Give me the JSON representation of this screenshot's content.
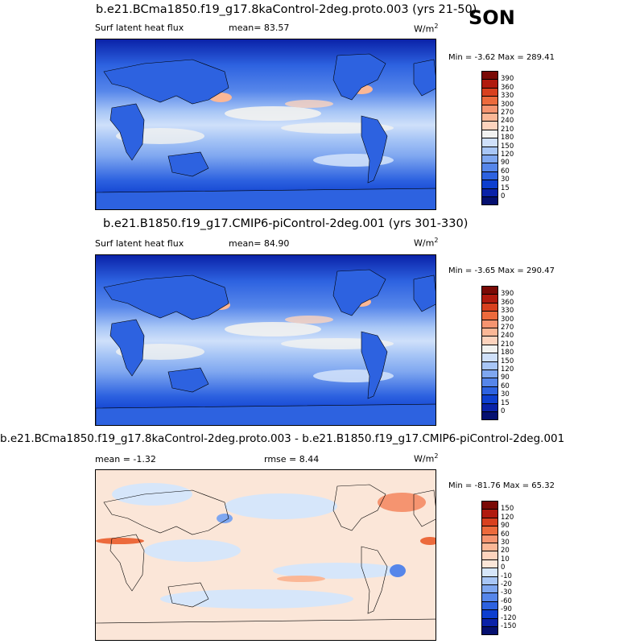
{
  "season": "SON",
  "panels": [
    {
      "title": "b.e21.BCma1850.f19_g17.8kaControl-2deg.proto.003 (yrs 21-50)",
      "left_label": "Surf latent heat flux",
      "stat_label": "mean=",
      "stat_value": "83.57",
      "units_base": "W/m",
      "units_sup": "2",
      "minmax": "Min =  -3.62 Max = 289.41",
      "colorbar": {
        "levels": [
          "390",
          "360",
          "330",
          "300",
          "270",
          "240",
          "210",
          "180",
          "150",
          "120",
          "90",
          "60",
          "30",
          "15",
          "0"
        ],
        "colors": [
          "#7a0a06",
          "#b01a0e",
          "#d8401e",
          "#ec6a3c",
          "#f59470",
          "#fbb796",
          "#fdd3bd",
          "#f2f2f0",
          "#cfe0fa",
          "#a8c6f6",
          "#7fa7f0",
          "#5686ea",
          "#2d62e0",
          "#0e3fcf",
          "#0a22a8",
          "#051070"
        ]
      }
    },
    {
      "title": "b.e21.B1850.f19_g17.CMIP6-piControl-2deg.001 (yrs 301-330)",
      "left_label": "Surf latent heat flux",
      "stat_label": "mean=",
      "stat_value": "84.90",
      "units_base": "W/m",
      "units_sup": "2",
      "minmax": "Min =  -3.65 Max = 290.47",
      "colorbar": {
        "levels": [
          "390",
          "360",
          "330",
          "300",
          "270",
          "240",
          "210",
          "180",
          "150",
          "120",
          "90",
          "60",
          "30",
          "15",
          "0"
        ],
        "colors": [
          "#7a0a06",
          "#b01a0e",
          "#d8401e",
          "#ec6a3c",
          "#f59470",
          "#fbb796",
          "#fdd3bd",
          "#f2f2f0",
          "#cfe0fa",
          "#a8c6f6",
          "#7fa7f0",
          "#5686ea",
          "#2d62e0",
          "#0e3fcf",
          "#0a22a8",
          "#051070"
        ]
      }
    },
    {
      "title": "b.e21.BCma1850.f19_g17.8kaControl-2deg.proto.003 - b.e21.B1850.f19_g17.CMIP6-piControl-2deg.001",
      "left_label": "mean =  -1.32",
      "stat_label": "rmse =",
      "stat_value": "8.44",
      "units_base": "W/m",
      "units_sup": "2",
      "minmax": "Min = -81.76 Max =  65.32",
      "colorbar": {
        "levels": [
          "150",
          "120",
          "90",
          "60",
          "30",
          "20",
          "10",
          "0",
          "-10",
          "-20",
          "-30",
          "-60",
          "-90",
          "-120",
          "-150"
        ],
        "colors": [
          "#7a0a06",
          "#b01a0e",
          "#d8401e",
          "#ec6a3c",
          "#f59470",
          "#fbb796",
          "#fdd3bd",
          "#fbe6d8",
          "#d6e6fa",
          "#a8c6f6",
          "#7fa7f0",
          "#5686ea",
          "#2d62e0",
          "#0e3fcf",
          "#0a22a8",
          "#051070"
        ]
      }
    }
  ],
  "chart_data": [
    {
      "type": "heatmap",
      "title": "b.e21.BCma1850.f19_g17.8kaControl-2deg.proto.003 (yrs 21-50)",
      "variable": "Surf latent heat flux",
      "mean": 83.57,
      "min": -3.62,
      "max": 289.41,
      "units": "W/m2",
      "contour_levels": [
        0,
        15,
        30,
        60,
        90,
        120,
        150,
        180,
        210,
        240,
        270,
        300,
        330,
        360,
        390
      ]
    },
    {
      "type": "heatmap",
      "title": "b.e21.B1850.f19_g17.CMIP6-piControl-2deg.001 (yrs 301-330)",
      "variable": "Surf latent heat flux",
      "mean": 84.9,
      "min": -3.65,
      "max": 290.47,
      "units": "W/m2",
      "contour_levels": [
        0,
        15,
        30,
        60,
        90,
        120,
        150,
        180,
        210,
        240,
        270,
        300,
        330,
        360,
        390
      ]
    },
    {
      "type": "heatmap",
      "title": "b.e21.BCma1850.f19_g17.8kaControl-2deg.proto.003 - b.e21.B1850.f19_g17.CMIP6-piControl-2deg.001",
      "mean": -1.32,
      "rmse": 8.44,
      "min": -81.76,
      "max": 65.32,
      "units": "W/m2",
      "contour_levels": [
        -150,
        -120,
        -90,
        -60,
        -30,
        -20,
        -10,
        0,
        10,
        20,
        30,
        60,
        90,
        120,
        150
      ]
    }
  ]
}
